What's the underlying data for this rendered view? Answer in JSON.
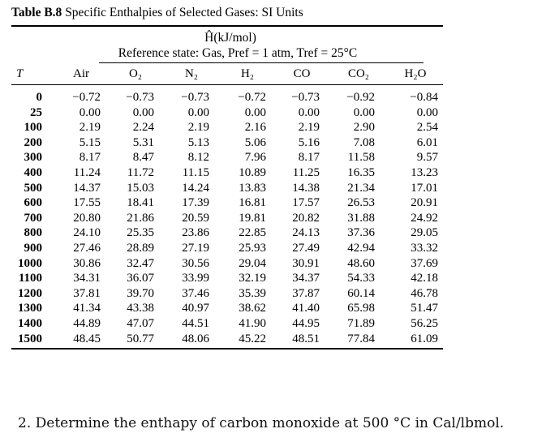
{
  "table": {
    "label": "Table B.8",
    "title": "Specific Enthalpies of Selected Gases: SI Units",
    "unit_line": "Ĥ(kJ/mol)",
    "reference_line": "Reference state: Gas, Pref = 1 atm, Tref = 25°C",
    "columns": [
      "T",
      "Air",
      "O₂",
      "N₂",
      "H₂",
      "CO",
      "CO₂",
      "H₂O"
    ],
    "rows": [
      [
        "0",
        "−0.72",
        "−0.73",
        "−0.73",
        "−0.72",
        "−0.73",
        "−0.92",
        "−0.84"
      ],
      [
        "25",
        "0.00",
        "0.00",
        "0.00",
        "0.00",
        "0.00",
        "0.00",
        "0.00"
      ],
      [
        "100",
        "2.19",
        "2.24",
        "2.19",
        "2.16",
        "2.19",
        "2.90",
        "2.54"
      ],
      [
        "200",
        "5.15",
        "5.31",
        "5.13",
        "5.06",
        "5.16",
        "7.08",
        "6.01"
      ],
      [
        "300",
        "8.17",
        "8.47",
        "8.12",
        "7.96",
        "8.17",
        "11.58",
        "9.57"
      ],
      [
        "400",
        "11.24",
        "11.72",
        "11.15",
        "10.89",
        "11.25",
        "16.35",
        "13.23"
      ],
      [
        "500",
        "14.37",
        "15.03",
        "14.24",
        "13.83",
        "14.38",
        "21.34",
        "17.01"
      ],
      [
        "600",
        "17.55",
        "18.41",
        "17.39",
        "16.81",
        "17.57",
        "26.53",
        "20.91"
      ],
      [
        "700",
        "20.80",
        "21.86",
        "20.59",
        "19.81",
        "20.82",
        "31.88",
        "24.92"
      ],
      [
        "800",
        "24.10",
        "25.35",
        "23.86",
        "22.85",
        "24.13",
        "37.36",
        "29.05"
      ],
      [
        "900",
        "27.46",
        "28.89",
        "27.19",
        "25.93",
        "27.49",
        "42.94",
        "33.32"
      ],
      [
        "1000",
        "30.86",
        "32.47",
        "30.56",
        "29.04",
        "30.91",
        "48.60",
        "37.69"
      ],
      [
        "1100",
        "34.31",
        "36.07",
        "33.99",
        "32.19",
        "34.37",
        "54.33",
        "42.18"
      ],
      [
        "1200",
        "37.81",
        "39.70",
        "37.46",
        "35.39",
        "37.87",
        "60.14",
        "46.78"
      ],
      [
        "1300",
        "41.34",
        "43.38",
        "40.97",
        "38.62",
        "41.40",
        "65.98",
        "51.47"
      ],
      [
        "1400",
        "44.89",
        "47.07",
        "44.51",
        "41.90",
        "44.95",
        "71.89",
        "56.25"
      ],
      [
        "1500",
        "48.45",
        "50.77",
        "48.06",
        "45.22",
        "48.51",
        "77.84",
        "61.09"
      ]
    ]
  },
  "question": "2. Determine the enthapy of carbon monoxide at 500 °C in Cal/lbmol."
}
